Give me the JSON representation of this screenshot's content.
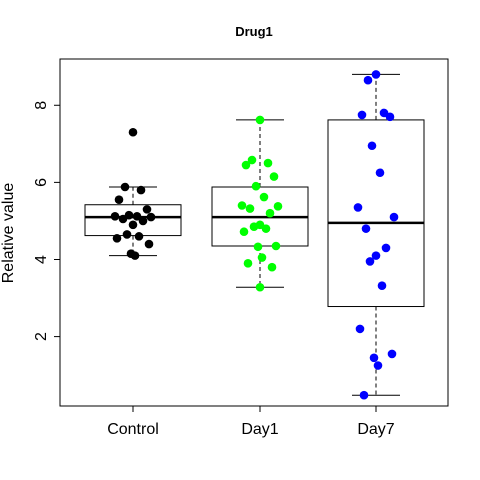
{
  "chart_data": {
    "type": "box",
    "title": "Drug1",
    "xlabel": "",
    "ylabel": "Relative value",
    "categories": [
      "Control",
      "Day1",
      "Day7"
    ],
    "ylim": [
      0.2,
      9.2
    ],
    "yticks": [
      2,
      4,
      6,
      8
    ],
    "grid": false,
    "legend": "none",
    "series": [
      {
        "category": "Control",
        "color": "#000000",
        "whisker_low": 4.1,
        "q1": 4.62,
        "median": 5.1,
        "q3": 5.42,
        "whisker_high": 5.88,
        "outliers": [
          7.3
        ],
        "points": [
          7.3,
          5.88,
          5.8,
          5.55,
          5.3,
          5.15,
          5.12,
          5.12,
          5.1,
          5.05,
          5.0,
          4.9,
          4.65,
          4.6,
          4.55,
          4.4,
          4.15,
          4.1
        ]
      },
      {
        "category": "Day1",
        "color": "#00ff00",
        "whisker_low": 3.28,
        "q1": 4.35,
        "median": 5.1,
        "q3": 5.88,
        "whisker_high": 7.62,
        "outliers": [],
        "points": [
          7.62,
          6.58,
          6.5,
          6.45,
          6.15,
          5.9,
          5.62,
          5.4,
          5.38,
          5.32,
          5.2,
          4.9,
          4.85,
          4.8,
          4.72,
          4.35,
          4.33,
          4.05,
          3.9,
          3.8,
          3.28
        ]
      },
      {
        "category": "Day7",
        "color": "#0000ff",
        "whisker_low": 0.48,
        "q1": 2.78,
        "median": 4.95,
        "q3": 7.62,
        "whisker_high": 8.8,
        "outliers": [],
        "points": [
          8.8,
          8.65,
          7.8,
          7.75,
          7.7,
          6.95,
          6.25,
          5.35,
          5.1,
          4.8,
          4.3,
          4.1,
          3.95,
          3.32,
          2.2,
          1.55,
          1.45,
          1.25,
          0.48
        ]
      }
    ]
  }
}
